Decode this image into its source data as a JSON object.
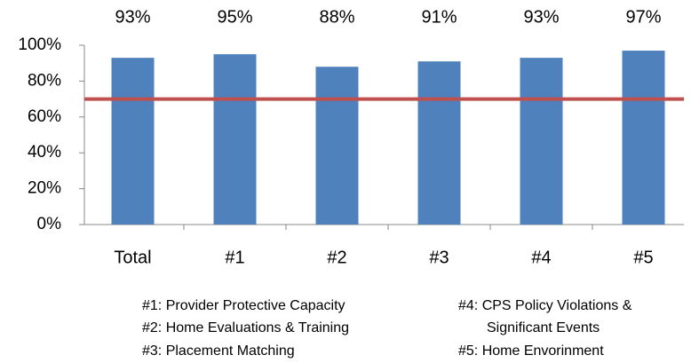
{
  "chart_data": {
    "type": "bar",
    "categories": [
      "Total",
      "#1",
      "#2",
      "#3",
      "#4",
      "#5"
    ],
    "values": [
      93,
      95,
      88,
      91,
      93,
      97
    ],
    "value_labels": [
      "93%",
      "95%",
      "88%",
      "91%",
      "93%",
      "97%"
    ],
    "color": "#4f81bd",
    "ylim": [
      0,
      100
    ],
    "yticks": [
      {
        "value": 0,
        "label": "0%"
      },
      {
        "value": 20,
        "label": "20%"
      },
      {
        "value": 40,
        "label": "40%"
      },
      {
        "value": 60,
        "label": "60%"
      },
      {
        "value": 80,
        "label": "80%"
      },
      {
        "value": 100,
        "label": "100%"
      }
    ],
    "reference_line": {
      "value": 70,
      "color": "#c0504d"
    },
    "notes": [
      "#1: Provider Protective Capacity",
      "#2: Home Evaluations & Training",
      "#3: Placement Matching",
      "#4: CPS Policy Violations &",
      "Significant Events",
      "#5: Home Envorinment"
    ]
  }
}
